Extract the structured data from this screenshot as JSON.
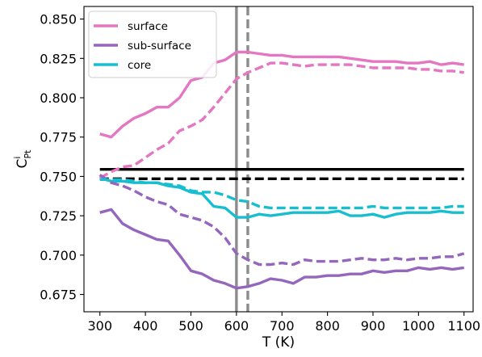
{
  "chart_data": {
    "type": "line",
    "xlabel": "T (K)",
    "ylabel": {
      "base": "C",
      "sup": "i",
      "sub": "Pt"
    },
    "xlim": [
      265,
      1120
    ],
    "ylim": [
      0.664,
      0.858
    ],
    "xticks": [
      300,
      400,
      500,
      600,
      700,
      800,
      900,
      1000,
      1100
    ],
    "xtick_labels": [
      "300",
      "400",
      "500",
      "600",
      "700",
      "800",
      "900",
      "1000",
      "1100"
    ],
    "yticks": [
      0.675,
      0.7,
      0.725,
      0.75,
      0.775,
      0.8,
      0.825,
      0.85
    ],
    "ytick_labels": [
      "0.675",
      "0.700",
      "0.725",
      "0.750",
      "0.775",
      "0.800",
      "0.825",
      "0.850"
    ],
    "grid": false,
    "legend_position": "top-left",
    "x": [
      300,
      325,
      350,
      375,
      400,
      425,
      450,
      475,
      500,
      525,
      550,
      575,
      600,
      625,
      650,
      675,
      700,
      725,
      750,
      775,
      800,
      825,
      850,
      875,
      900,
      925,
      950,
      975,
      1000,
      1025,
      1050,
      1075,
      1100
    ],
    "series": [
      {
        "name": "surface",
        "color": "#e377c2",
        "style": "solid",
        "values": [
          0.777,
          0.775,
          0.782,
          0.787,
          0.79,
          0.794,
          0.794,
          0.8,
          0.811,
          0.813,
          0.822,
          0.824,
          0.829,
          0.829,
          0.828,
          0.827,
          0.827,
          0.826,
          0.826,
          0.826,
          0.826,
          0.826,
          0.825,
          0.824,
          0.823,
          0.823,
          0.823,
          0.822,
          0.822,
          0.823,
          0.821,
          0.822,
          0.821
        ]
      },
      {
        "name": "sub-surface",
        "color": "#9467bd",
        "style": "solid",
        "values": [
          0.727,
          0.729,
          0.72,
          0.716,
          0.713,
          0.71,
          0.709,
          0.7,
          0.69,
          0.688,
          0.684,
          0.682,
          0.679,
          0.68,
          0.682,
          0.685,
          0.684,
          0.682,
          0.686,
          0.686,
          0.687,
          0.687,
          0.688,
          0.688,
          0.69,
          0.689,
          0.69,
          0.69,
          0.692,
          0.691,
          0.692,
          0.691,
          0.692
        ]
      },
      {
        "name": "core",
        "color": "#17becf",
        "style": "solid",
        "values": [
          0.749,
          0.747,
          0.747,
          0.746,
          0.746,
          0.746,
          0.744,
          0.743,
          0.74,
          0.739,
          0.731,
          0.73,
          0.724,
          0.724,
          0.726,
          0.725,
          0.726,
          0.727,
          0.727,
          0.727,
          0.727,
          0.728,
          0.725,
          0.725,
          0.726,
          0.724,
          0.726,
          0.727,
          0.727,
          0.727,
          0.728,
          0.727,
          0.727
        ]
      },
      {
        "color": "#e377c2",
        "style": "dashed",
        "values": [
          0.749,
          0.753,
          0.756,
          0.757,
          0.762,
          0.767,
          0.771,
          0.779,
          0.782,
          0.786,
          0.794,
          0.803,
          0.812,
          0.816,
          0.819,
          0.822,
          0.822,
          0.821,
          0.82,
          0.821,
          0.821,
          0.821,
          0.821,
          0.82,
          0.819,
          0.819,
          0.819,
          0.819,
          0.818,
          0.818,
          0.817,
          0.817,
          0.816
        ]
      },
      {
        "color": "#9467bd",
        "style": "dashed",
        "values": [
          0.751,
          0.746,
          0.744,
          0.741,
          0.737,
          0.734,
          0.732,
          0.726,
          0.724,
          0.722,
          0.718,
          0.711,
          0.701,
          0.697,
          0.694,
          0.694,
          0.695,
          0.694,
          0.697,
          0.696,
          0.696,
          0.696,
          0.697,
          0.698,
          0.697,
          0.697,
          0.698,
          0.697,
          0.698,
          0.698,
          0.699,
          0.699,
          0.701
        ]
      },
      {
        "color": "#17becf",
        "style": "dashed",
        "values": [
          0.748,
          0.748,
          0.748,
          0.747,
          0.746,
          0.746,
          0.745,
          0.744,
          0.741,
          0.74,
          0.74,
          0.738,
          0.735,
          0.734,
          0.731,
          0.73,
          0.73,
          0.73,
          0.73,
          0.73,
          0.73,
          0.73,
          0.73,
          0.73,
          0.731,
          0.73,
          0.73,
          0.73,
          0.73,
          0.73,
          0.73,
          0.731,
          0.731
        ]
      }
    ],
    "hlines": [
      {
        "y": 0.7545,
        "color": "#000000",
        "style": "solid"
      },
      {
        "y": 0.7485,
        "color": "#000000",
        "style": "dashed"
      }
    ],
    "vlines": [
      {
        "x": 600,
        "color": "#8c8c8c",
        "style": "solid"
      },
      {
        "x": 625,
        "color": "#8c8c8c",
        "style": "dashed"
      }
    ]
  }
}
